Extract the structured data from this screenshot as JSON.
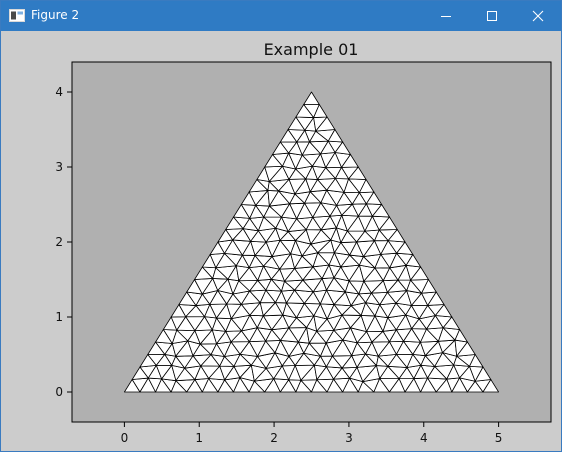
{
  "window": {
    "title": "Figure 2",
    "titlebar_color": "#2f7bc4",
    "controls": {
      "minimize": "minimize-icon",
      "maximize": "maximize-icon",
      "close": "close-icon"
    }
  },
  "figure": {
    "background": "#cccccc",
    "axes_background": "#b0b0b0"
  },
  "chart_data": {
    "type": "triangular-mesh",
    "title": "Example 01",
    "xlabel": "",
    "ylabel": "",
    "xlim": [
      -0.7,
      5.7
    ],
    "ylim": [
      -0.4,
      4.4
    ],
    "xticks": [
      0,
      1,
      2,
      3,
      4,
      5
    ],
    "xtick_labels": [
      "0",
      "1",
      "2",
      "3",
      "4",
      "5"
    ],
    "yticks": [
      0,
      1,
      2,
      3,
      4
    ],
    "ytick_labels": [
      "0",
      "1",
      "2",
      "3",
      "4"
    ],
    "domain_vertices": [
      [
        0,
        0
      ],
      [
        5,
        0
      ],
      [
        2.5,
        4
      ]
    ],
    "mesh_subdivisions": 24,
    "face_color": "#ffffff",
    "edge_color": "#000000",
    "grid": false
  }
}
